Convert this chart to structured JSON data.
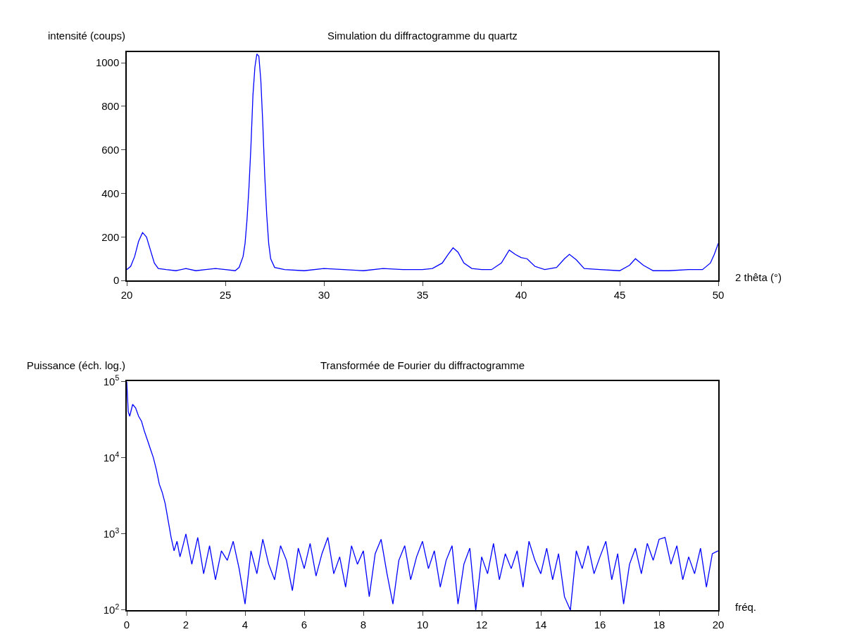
{
  "chart_data": [
    {
      "type": "line",
      "title": "Simulation du diffractogramme du quartz",
      "xlabel": "2 thêta (°)",
      "ylabel": "intensité (coups)",
      "color": "#0000ff",
      "line_style": "solid",
      "xlim": [
        20,
        50
      ],
      "ylim": [
        0,
        1050
      ],
      "xticks": [
        20,
        25,
        30,
        35,
        40,
        45,
        50
      ],
      "yticks": [
        0,
        200,
        400,
        600,
        800,
        1000
      ],
      "x": [
        20.0,
        20.2,
        20.4,
        20.6,
        20.8,
        21.0,
        21.2,
        21.4,
        21.6,
        22,
        22.5,
        23,
        23.5,
        24,
        24.5,
        25,
        25.5,
        25.7,
        25.9,
        26.0,
        26.1,
        26.2,
        26.3,
        26.4,
        26.5,
        26.6,
        26.7,
        26.8,
        26.9,
        27.0,
        27.1,
        27.2,
        27.3,
        27.5,
        28,
        29,
        30,
        31,
        32,
        33,
        34,
        35,
        35.5,
        36.0,
        36.3,
        36.55,
        36.8,
        37.1,
        37.5,
        38,
        38.5,
        39.0,
        39.4,
        39.7,
        40.0,
        40.3,
        40.7,
        41.2,
        41.8,
        42.2,
        42.45,
        42.8,
        43.2,
        44,
        45,
        45.5,
        45.8,
        46.2,
        46.7,
        47.5,
        48.5,
        49.2,
        49.6,
        49.8,
        50
      ],
      "values": [
        50,
        65,
        110,
        180,
        220,
        200,
        140,
        80,
        55,
        50,
        45,
        55,
        45,
        50,
        55,
        50,
        45,
        60,
        110,
        170,
        280,
        430,
        620,
        850,
        980,
        1040,
        1030,
        920,
        720,
        480,
        300,
        170,
        100,
        60,
        50,
        45,
        55,
        50,
        45,
        55,
        50,
        50,
        55,
        80,
        120,
        150,
        130,
        80,
        55,
        50,
        50,
        80,
        140,
        120,
        105,
        100,
        65,
        50,
        60,
        100,
        120,
        95,
        55,
        50,
        45,
        70,
        100,
        70,
        45,
        45,
        50,
        50,
        80,
        120,
        170
      ]
    },
    {
      "type": "line",
      "title": "Transformée de Fourier du diffractogramme",
      "xlabel": "fréq.",
      "ylabel": "Puissance (éch. log.)",
      "color": "#0000ff",
      "log": "y",
      "line_style": "solid",
      "xlim": [
        0,
        20
      ],
      "ylim": [
        100,
        100000
      ],
      "xticks": [
        0,
        2,
        4,
        6,
        8,
        10,
        12,
        14,
        16,
        18,
        20
      ],
      "yticks": [
        {
          "value": 100,
          "label": "10$^{2}$"
        },
        {
          "value": 1000,
          "label": "10$^{3}$"
        },
        {
          "value": 10000,
          "label": "10$^{4}$"
        },
        {
          "value": 100000,
          "label": "10$^{5}$"
        }
      ],
      "x": [
        0,
        0.05,
        0.1,
        0.2,
        0.3,
        0.4,
        0.5,
        0.6,
        0.7,
        0.8,
        0.9,
        1.0,
        1.1,
        1.2,
        1.3,
        1.4,
        1.5,
        1.6,
        1.7,
        1.8,
        1.9,
        2.0,
        2.2,
        2.4,
        2.6,
        2.8,
        3.0,
        3.2,
        3.4,
        3.6,
        3.8,
        4.0,
        4.2,
        4.4,
        4.6,
        4.8,
        5.0,
        5.2,
        5.4,
        5.6,
        5.8,
        6.0,
        6.2,
        6.4,
        6.6,
        6.8,
        7.0,
        7.2,
        7.4,
        7.6,
        7.8,
        8.0,
        8.2,
        8.4,
        8.6,
        8.8,
        9.0,
        9.2,
        9.4,
        9.6,
        9.8,
        10.0,
        10.2,
        10.4,
        10.6,
        10.8,
        11.0,
        11.2,
        11.4,
        11.6,
        11.8,
        12.0,
        12.2,
        12.4,
        12.6,
        12.8,
        13.0,
        13.2,
        13.4,
        13.6,
        13.8,
        14.0,
        14.2,
        14.4,
        14.6,
        14.8,
        15.0,
        15.2,
        15.4,
        15.6,
        15.8,
        16.0,
        16.2,
        16.4,
        16.6,
        16.8,
        17.0,
        17.2,
        17.4,
        17.6,
        17.8,
        18.0,
        18.2,
        18.4,
        18.6,
        18.8,
        19.0,
        19.2,
        19.4,
        19.6,
        19.8,
        20.0
      ],
      "values": [
        100000,
        40000,
        35000,
        50000,
        45000,
        35000,
        30000,
        22000,
        17000,
        13000,
        10000,
        7000,
        4500,
        3500,
        2500,
        1500,
        900,
        600,
        800,
        500,
        700,
        1000,
        400,
        900,
        300,
        700,
        250,
        600,
        450,
        800,
        350,
        120,
        600,
        300,
        850,
        400,
        250,
        700,
        450,
        180,
        650,
        350,
        750,
        280,
        550,
        900,
        300,
        500,
        200,
        700,
        400,
        600,
        150,
        550,
        850,
        300,
        120,
        450,
        700,
        250,
        500,
        800,
        350,
        600,
        200,
        450,
        700,
        120,
        400,
        650,
        100,
        500,
        300,
        750,
        250,
        550,
        350,
        600,
        200,
        800,
        450,
        300,
        650,
        250,
        550,
        150,
        100,
        600,
        350,
        700,
        300,
        500,
        800,
        250,
        550,
        120,
        400,
        650,
        300,
        750,
        450,
        850,
        900,
        400,
        700,
        250,
        500,
        300,
        650,
        200,
        550,
        600
      ]
    }
  ]
}
